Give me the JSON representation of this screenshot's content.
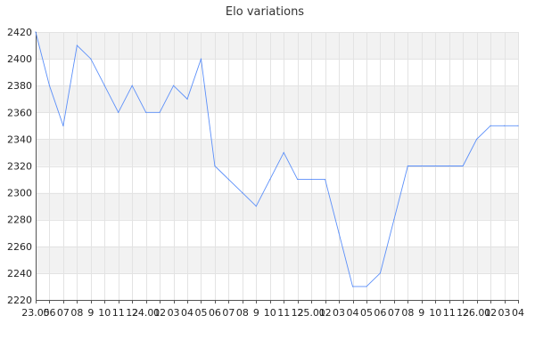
{
  "chart_data": {
    "type": "line",
    "title": "Elo variations",
    "xlabel": "",
    "ylabel": "",
    "ylim": [
      2220,
      2420
    ],
    "yticks": [
      2220,
      2240,
      2260,
      2280,
      2300,
      2320,
      2340,
      2360,
      2380,
      2400,
      2420
    ],
    "grid": true,
    "legend": "none",
    "colors": {
      "line": "#5b8ff9",
      "band": "#f2f2f2",
      "grid": "#e3e3e3",
      "axis": "#555555"
    },
    "x_tick_labels": [
      "23.05",
      "06",
      "07",
      "08",
      "9",
      "10",
      "11",
      "12",
      "24.01",
      "02",
      "03",
      "04",
      "05",
      "06",
      "07",
      "08",
      "9",
      "10",
      "11",
      "12",
      "25.01",
      "02",
      "03",
      "04",
      "05",
      "06",
      "07",
      "08",
      "9",
      "10",
      "11",
      "12",
      "26.01",
      "02",
      "03",
      "04"
    ],
    "series": [
      {
        "values": [
          2420,
          2380,
          2350,
          2410,
          2400,
          2380,
          2360,
          2380,
          2360,
          2360,
          2380,
          2370,
          2400,
          2320,
          2310,
          2300,
          2290,
          2310,
          2330,
          2310,
          2310,
          2310,
          2270,
          2230,
          2230,
          2240,
          2280,
          2320,
          2320,
          2320,
          2320,
          2320,
          2340,
          2350,
          2350,
          2350
        ]
      }
    ]
  }
}
